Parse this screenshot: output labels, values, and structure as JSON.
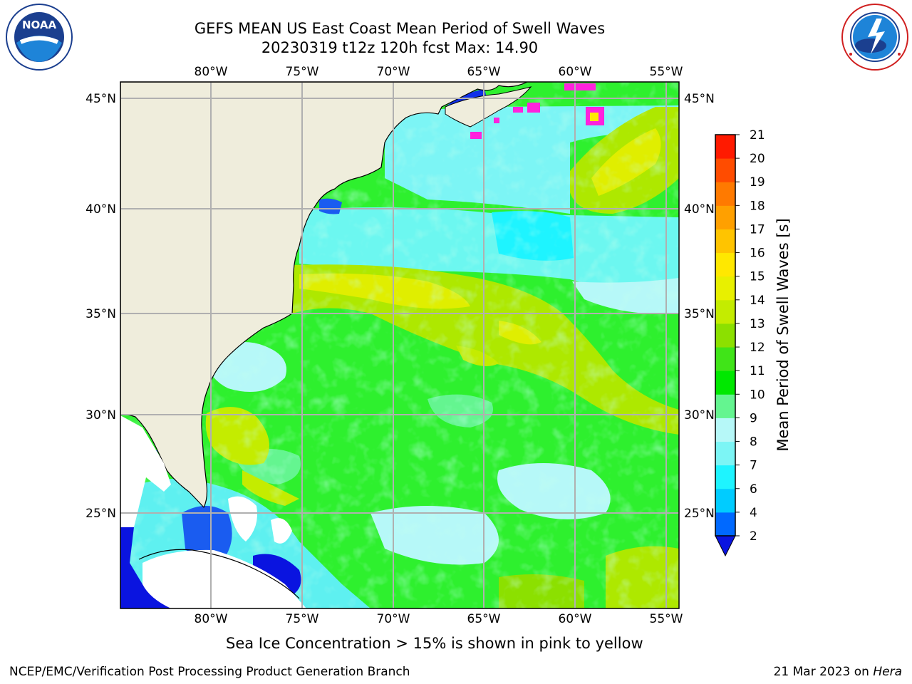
{
  "header": {
    "title_line1": "GEFS MEAN US East Coast Mean Period of Swell Waves",
    "title_line2": "20230319 t12z 120h fcst   Max: 14.90"
  },
  "logos": {
    "left_icon": "noaa-logo-icon",
    "left_text": "NOAA",
    "left_ring_text": "NATIONAL OCEANIC AND ATMOSPHERIC ADMINISTRATION · U.S. DEPARTMENT OF COMMERCE",
    "right_icon": "nws-logo-icon",
    "right_ring_text": "NATIONAL WEATHER SERVICE"
  },
  "map": {
    "lon_labels": [
      "80°W",
      "75°W",
      "70°W",
      "65°W",
      "60°W",
      "55°W"
    ],
    "lat_labels": [
      "45°N",
      "40°N",
      "35°N",
      "30°N",
      "25°N"
    ],
    "land_color": "#efeddc",
    "grid_color": "#b0b0b0"
  },
  "colorbar": {
    "label": "Mean Period of Swell Waves [s]",
    "ticks": [
      "2",
      "4",
      "6",
      "7",
      "8",
      "9",
      "10",
      "11",
      "12",
      "13",
      "14",
      "15",
      "16",
      "17",
      "18",
      "19",
      "20",
      "21"
    ],
    "colors": [
      "#0069ff",
      "#00ccff",
      "#1ef4ff",
      "#7cf5f5",
      "#b6f8f8",
      "#64f590",
      "#00e800",
      "#40e418",
      "#8ce000",
      "#c4ec00",
      "#e8f000",
      "#ffe800",
      "#ffc400",
      "#ffa000",
      "#ff7a00",
      "#ff4c00",
      "#ff1a00"
    ],
    "under_color": "#0a14e0"
  },
  "notes": {
    "sea_ice": "Sea Ice Concentration > 15% is shown in pink to yellow"
  },
  "footer": {
    "left": "NCEP/EMC/Verification Post Processing Product Generation Branch",
    "right_prefix": "21 Mar 2023 on",
    "right_host": "Hera"
  }
}
